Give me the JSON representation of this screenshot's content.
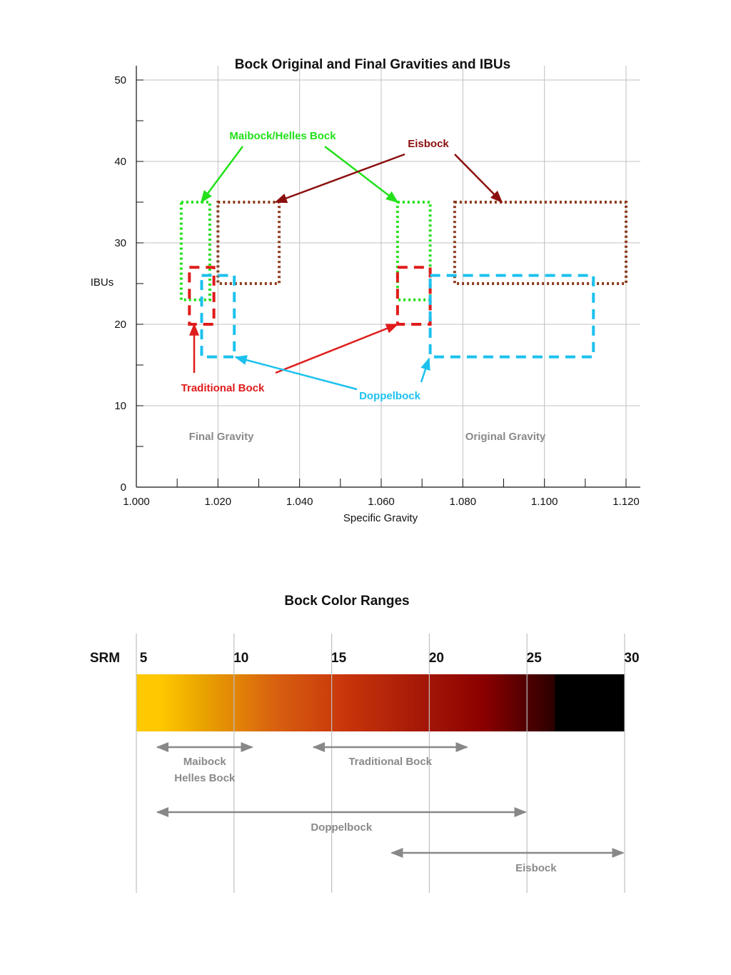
{
  "colors": {
    "traditional": "#e01b1b",
    "maibock": "#22e01a",
    "doppelbock": "#1cc1ee",
    "eisbock": "#8b3a1a",
    "eisbock_label": "#8b0f0f",
    "grid": "#c0c0c0",
    "range_arrow": "#888888"
  },
  "chart_data": [
    {
      "type": "range-boxes",
      "title": "Bock Original and Final Gravities and IBUs",
      "xlabel": "Specific Gravity",
      "ylabel": "IBUs",
      "xlim": [
        1.0,
        1.12
      ],
      "ylim": [
        0,
        50
      ],
      "x_ticks": [
        "1.000",
        "1.020",
        "1.040",
        "1.060",
        "1.080",
        "1.100",
        "1.120"
      ],
      "y_ticks": [
        "0",
        "10",
        "20",
        "30",
        "40",
        "50"
      ],
      "grid": true,
      "region_labels": [
        "Final Gravity",
        "Original Gravity"
      ],
      "series": [
        {
          "name": "Maibock/Helles Bock",
          "line": "dotted",
          "color": "#22e01a",
          "boxes": [
            {
              "x": [
                1.011,
                1.018
              ],
              "y": [
                23,
                35
              ]
            },
            {
              "x": [
                1.064,
                1.072
              ],
              "y": [
                23,
                35
              ]
            }
          ]
        },
        {
          "name": "Eisbock",
          "line": "dotted",
          "color": "#8b3a1a",
          "boxes": [
            {
              "x": [
                1.02,
                1.035
              ],
              "y": [
                25,
                35
              ]
            },
            {
              "x": [
                1.078,
                1.12
              ],
              "y": [
                25,
                35
              ]
            }
          ]
        },
        {
          "name": "Traditional Bock",
          "line": "dashed",
          "color": "#e01b1b",
          "boxes": [
            {
              "x": [
                1.013,
                1.019
              ],
              "y": [
                20,
                27
              ]
            },
            {
              "x": [
                1.064,
                1.072
              ],
              "y": [
                20,
                27
              ]
            }
          ]
        },
        {
          "name": "Doppelbock",
          "line": "dashed",
          "color": "#1cc1ee",
          "boxes": [
            {
              "x": [
                1.016,
                1.024
              ],
              "y": [
                16,
                26
              ]
            },
            {
              "x": [
                1.072,
                1.112
              ],
              "y": [
                16,
                26
              ]
            }
          ]
        }
      ]
    },
    {
      "type": "range-bars",
      "title": "Bock Color Ranges",
      "axis_label": "SRM",
      "xlim": [
        5,
        30
      ],
      "ticks": [
        "5",
        "10",
        "15",
        "20",
        "25",
        "30"
      ],
      "gradient": [
        "#ffc800",
        "#e8a000",
        "#d86010",
        "#c8350a",
        "#a81a08",
        "#8a0000",
        "#2a0000",
        "#000000"
      ],
      "ranges": [
        {
          "name": "Maibock\nHelles Bock",
          "lines": [
            "Maibock",
            "Helles Bock"
          ],
          "range": [
            6,
            11
          ]
        },
        {
          "name": "Traditional Bock",
          "lines": [
            "Traditional Bock"
          ],
          "range": [
            14,
            22
          ]
        },
        {
          "name": "Doppelbock",
          "lines": [
            "Doppelbock"
          ],
          "range": [
            6,
            25
          ]
        },
        {
          "name": "Eisbock",
          "lines": [
            "Eisbock"
          ],
          "range": [
            18,
            30
          ]
        }
      ]
    }
  ]
}
